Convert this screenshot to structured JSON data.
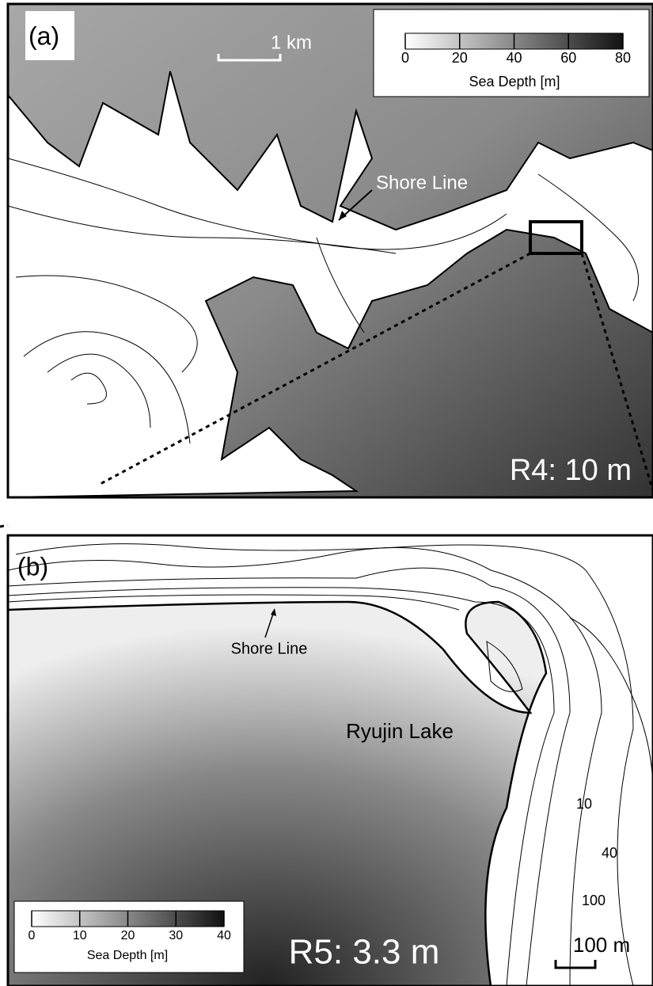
{
  "panels": [
    {
      "label": "(a)",
      "scale_bar": "1 km",
      "annotation": "Shore Line",
      "resolution": "R4: 10 m",
      "colorbar": {
        "ticks": [
          0,
          20,
          40,
          60,
          80
        ],
        "label": "Sea Depth [m]"
      }
    },
    {
      "label": "(b)",
      "scale_bar": "100 m",
      "annotations": [
        "Shore Line",
        "Ryujin Lake"
      ],
      "resolution": "R5: 3.3 m",
      "contour_labels": [
        10,
        40,
        100
      ],
      "colorbar": {
        "ticks": [
          0,
          10,
          20,
          30,
          40
        ],
        "label": "Sea Depth [m]"
      }
    }
  ]
}
